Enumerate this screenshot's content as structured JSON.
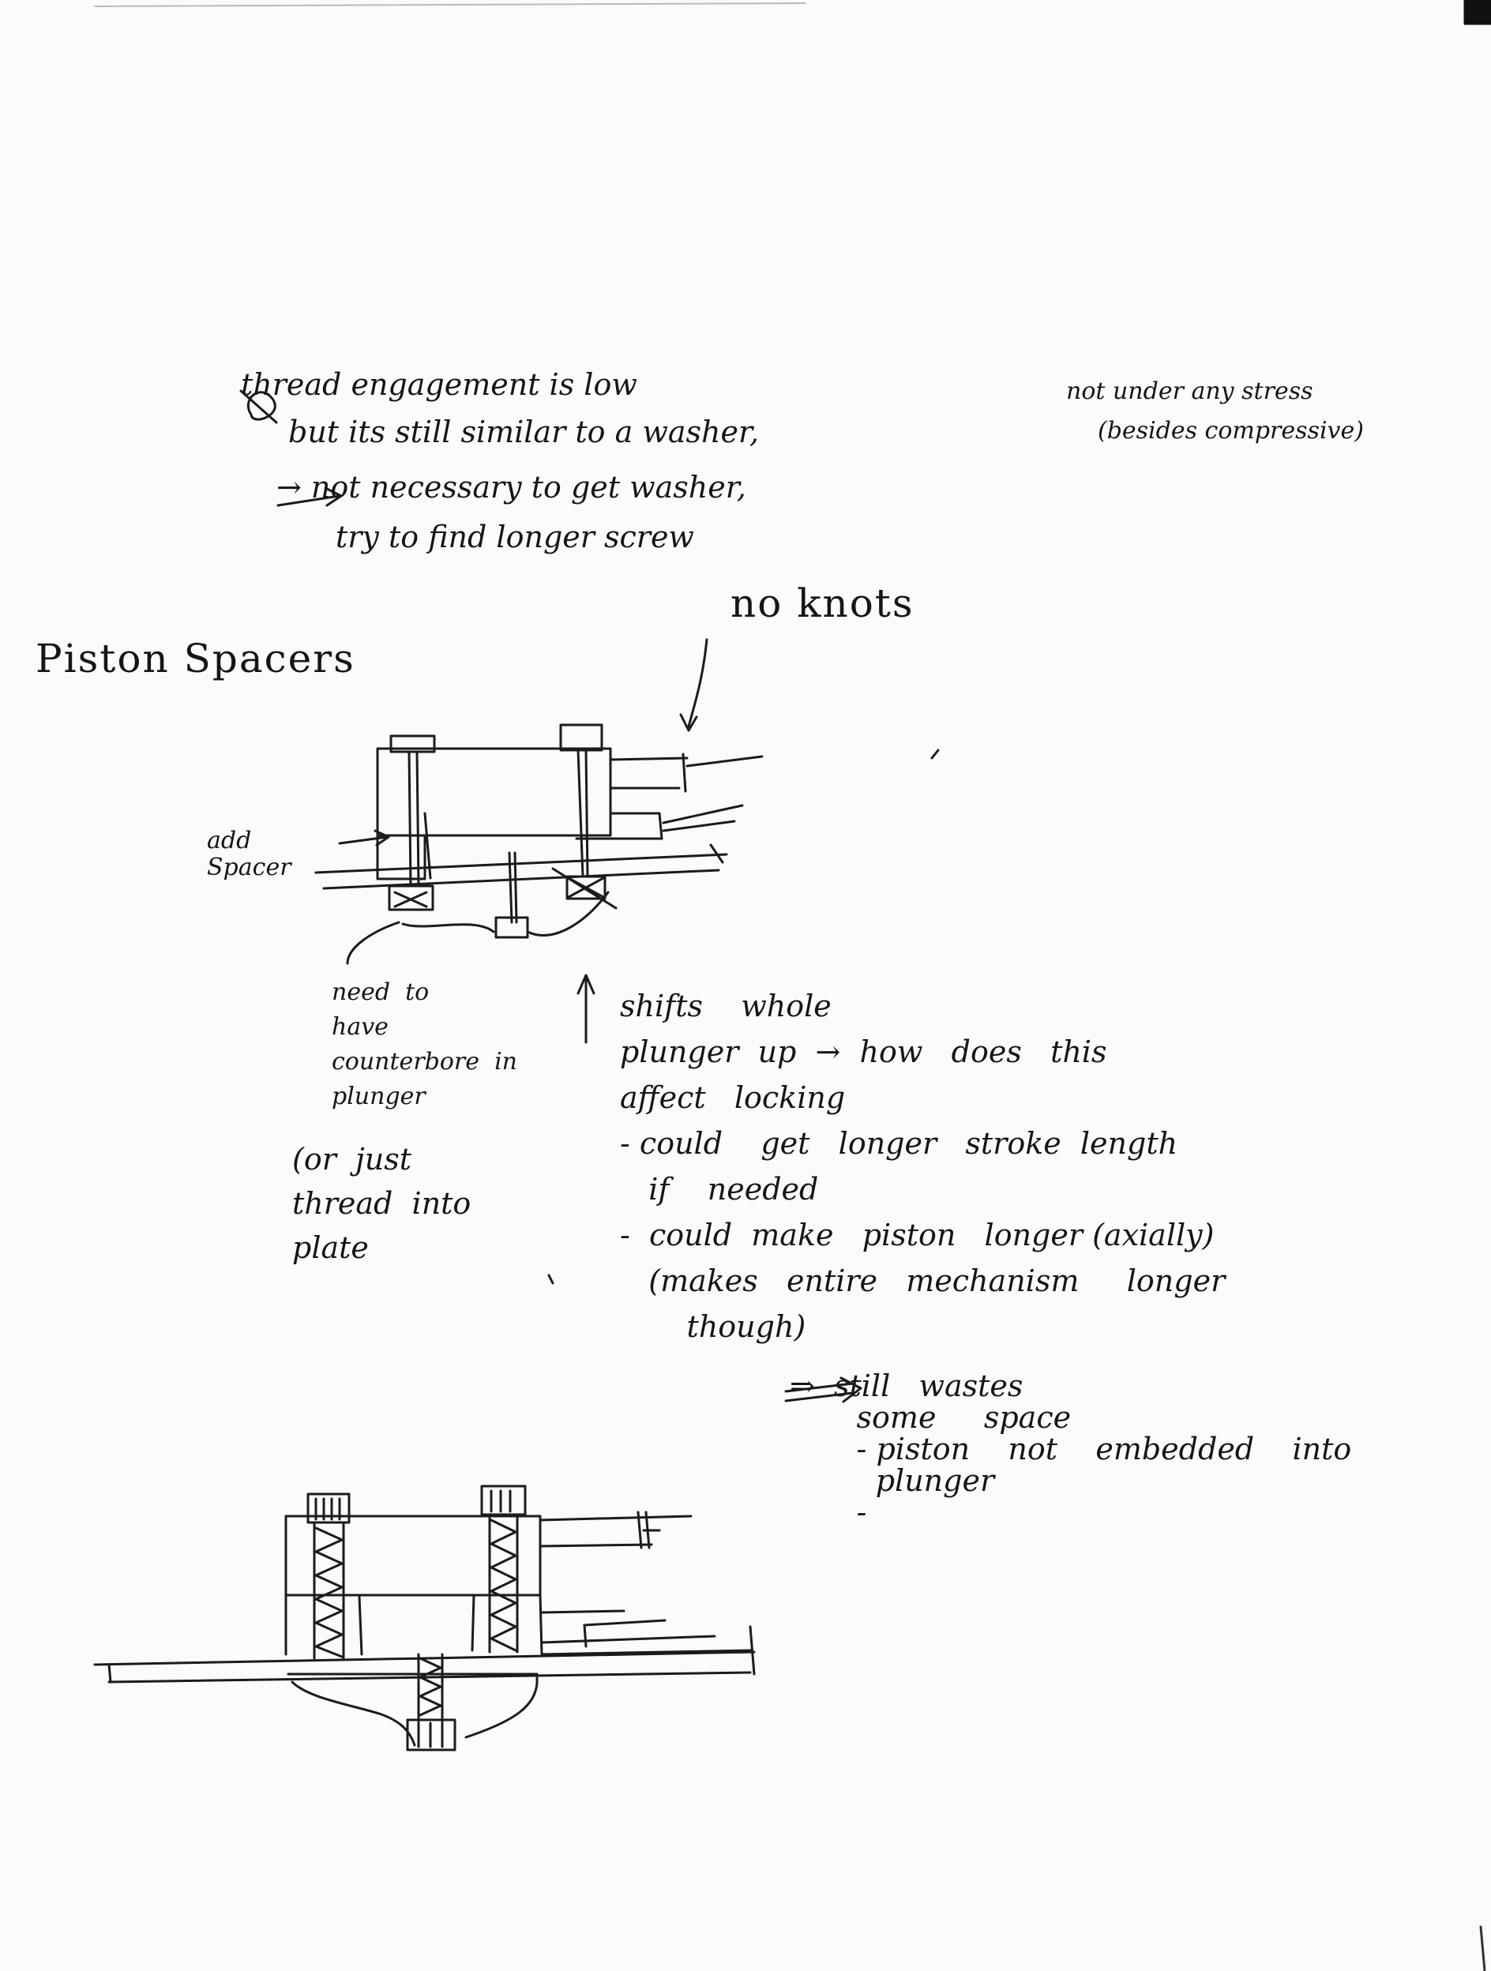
{
  "notes": {
    "line1": "thread engagement    is    low",
    "line1b": "not  under  any   stress",
    "line2": "but   its   still  similar    to  a   washer,",
    "line2b": "(besides   compressive)",
    "line3": "→  not  necessary    to   get   washer,",
    "line4": "try    to   find   longer   screw",
    "no_knots": "no   knots",
    "heading": "Piston  Spacers",
    "add_spacer": "add\nSpacer",
    "need_to": "need  to\nhave\ncounterbore  in\nplunger",
    "or_just": "(or  just\nthread  into\nplate",
    "shifts": "shifts    whole\nplunger  up  →  how   does   this\naffect   locking\n- could    get   longer   stroke  length\n   if    needed\n-  could  make   piston   longer (axially)\n   (makes   entire   mechanism     longer\n       though)",
    "still_wastes": "⇒  still   wastes\n       some     space\n       - piston    not    embedded    into\n         plunger\n       -"
  }
}
